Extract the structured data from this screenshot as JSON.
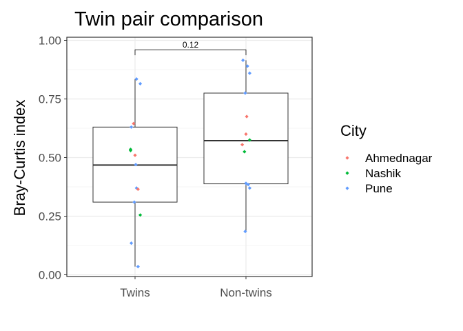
{
  "chart_data": {
    "type": "box",
    "title": "Twin pair comparison",
    "xlabel": "",
    "ylabel": "Bray-Curtis index",
    "categories": [
      "Twins",
      "Non-twins"
    ],
    "ylim": [
      0,
      1
    ],
    "yticks": [
      0.0,
      0.25,
      0.5,
      0.75,
      1.0
    ],
    "ytick_labels": [
      "0.00",
      "0.25",
      "0.50",
      "0.75",
      "1.00"
    ],
    "grid": true,
    "legend": {
      "title": "City",
      "placement": "right",
      "entries": [
        {
          "name": "Ahmednagar",
          "color": "#F8766D"
        },
        {
          "name": "Nashik",
          "color": "#00BA38"
        },
        {
          "name": "Pune",
          "color": "#619CFF"
        }
      ]
    },
    "boxes": [
      {
        "category": "Twins",
        "min": 0.035,
        "q1": 0.31,
        "median": 0.468,
        "q3": 0.63,
        "max": 0.835
      },
      {
        "category": "Non-twins",
        "min": 0.185,
        "q1": 0.388,
        "median": 0.572,
        "q3": 0.775,
        "max": 0.915
      }
    ],
    "points": [
      {
        "category": "Twins",
        "jitter": 0.02,
        "y": 0.835,
        "city": "Pune"
      },
      {
        "category": "Twins",
        "jitter": 0.07,
        "y": 0.815,
        "city": "Pune"
      },
      {
        "category": "Twins",
        "jitter": -0.05,
        "y": 0.63,
        "city": "Pune"
      },
      {
        "category": "Twins",
        "jitter": -0.02,
        "y": 0.645,
        "city": "Ahmednagar"
      },
      {
        "category": "Twins",
        "jitter": -0.06,
        "y": 0.535,
        "city": "Nashik"
      },
      {
        "category": "Twins",
        "jitter": -0.06,
        "y": 0.53,
        "city": "Nashik"
      },
      {
        "category": "Twins",
        "jitter": 0.0,
        "y": 0.51,
        "city": "Ahmednagar"
      },
      {
        "category": "Twins",
        "jitter": 0.01,
        "y": 0.47,
        "city": "Pune"
      },
      {
        "category": "Twins",
        "jitter": 0.02,
        "y": 0.37,
        "city": "Pune"
      },
      {
        "category": "Twins",
        "jitter": 0.04,
        "y": 0.365,
        "city": "Ahmednagar"
      },
      {
        "category": "Twins",
        "jitter": -0.01,
        "y": 0.31,
        "city": "Pune"
      },
      {
        "category": "Twins",
        "jitter": 0.07,
        "y": 0.255,
        "city": "Nashik"
      },
      {
        "category": "Twins",
        "jitter": -0.05,
        "y": 0.135,
        "city": "Pune"
      },
      {
        "category": "Twins",
        "jitter": 0.04,
        "y": 0.035,
        "city": "Pune"
      },
      {
        "category": "Non-twins",
        "jitter": -0.04,
        "y": 0.915,
        "city": "Pune"
      },
      {
        "category": "Non-twins",
        "jitter": 0.02,
        "y": 0.89,
        "city": "Pune"
      },
      {
        "category": "Non-twins",
        "jitter": 0.05,
        "y": 0.86,
        "city": "Pune"
      },
      {
        "category": "Non-twins",
        "jitter": -0.01,
        "y": 0.775,
        "city": "Pune"
      },
      {
        "category": "Non-twins",
        "jitter": 0.01,
        "y": 0.675,
        "city": "Ahmednagar"
      },
      {
        "category": "Non-twins",
        "jitter": 0.0,
        "y": 0.6,
        "city": "Ahmednagar"
      },
      {
        "category": "Non-twins",
        "jitter": 0.05,
        "y": 0.575,
        "city": "Nashik"
      },
      {
        "category": "Non-twins",
        "jitter": -0.05,
        "y": 0.555,
        "city": "Ahmednagar"
      },
      {
        "category": "Non-twins",
        "jitter": -0.02,
        "y": 0.525,
        "city": "Nashik"
      },
      {
        "category": "Non-twins",
        "jitter": 0.0,
        "y": 0.39,
        "city": "Pune"
      },
      {
        "category": "Non-twins",
        "jitter": 0.03,
        "y": 0.385,
        "city": "Pune"
      },
      {
        "category": "Non-twins",
        "jitter": 0.05,
        "y": 0.37,
        "city": "Pune"
      },
      {
        "category": "Non-twins",
        "jitter": -0.01,
        "y": 0.185,
        "city": "Pune"
      }
    ],
    "annotations": [
      {
        "type": "bracket",
        "from": "Twins",
        "to": "Non-twins",
        "y": 0.96,
        "label": "0.12"
      }
    ]
  }
}
